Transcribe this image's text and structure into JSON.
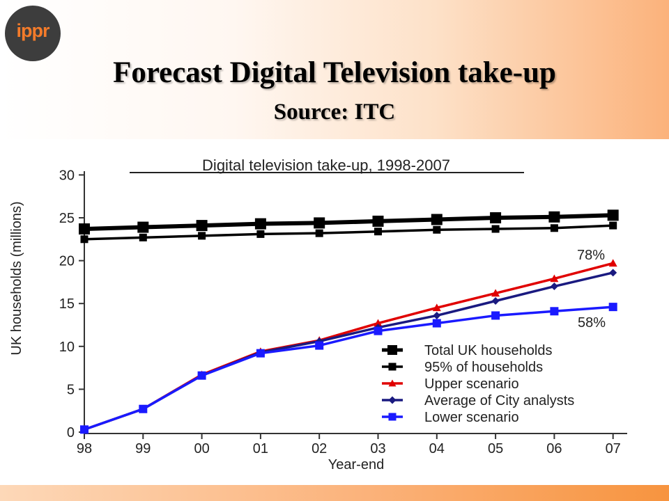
{
  "logo": {
    "text": "ippr"
  },
  "slide": {
    "title": "Forecast Digital Television take-up",
    "subtitle": "Source: ITC"
  },
  "chart_data": {
    "type": "line",
    "title": "Digital television take-up, 1998-2007",
    "xlabel": "Year-end",
    "ylabel": "UK households (millions)",
    "categories": [
      "98",
      "99",
      "00",
      "01",
      "02",
      "03",
      "04",
      "05",
      "06",
      "07"
    ],
    "ylim": [
      0,
      30
    ],
    "yticks": [
      0,
      5,
      10,
      15,
      20,
      25,
      30
    ],
    "grid": false,
    "legend_position": "bottom-right",
    "series": [
      {
        "name": "Total UK households",
        "color": "#000000",
        "marker": "square",
        "values": [
          23.7,
          23.9,
          24.1,
          24.3,
          24.4,
          24.6,
          24.8,
          25.0,
          25.1,
          25.3
        ]
      },
      {
        "name": "95% of households",
        "color": "#000000",
        "marker": "square",
        "values": [
          22.5,
          22.7,
          22.9,
          23.1,
          23.2,
          23.4,
          23.6,
          23.7,
          23.8,
          24.1
        ]
      },
      {
        "name": "Upper scenario",
        "color": "#e00000",
        "marker": "triangle",
        "values": [
          0.3,
          2.7,
          6.7,
          9.4,
          10.7,
          12.7,
          14.5,
          16.2,
          17.9,
          19.7
        ]
      },
      {
        "name": "Average of City analysts",
        "color": "#1a1a80",
        "marker": "diamond",
        "values": [
          0.3,
          2.7,
          6.6,
          9.3,
          10.6,
          12.2,
          13.6,
          15.3,
          17.0,
          18.6
        ]
      },
      {
        "name": "Lower scenario",
        "color": "#1a1aff",
        "marker": "square",
        "values": [
          0.3,
          2.7,
          6.6,
          9.2,
          10.1,
          11.8,
          12.7,
          13.6,
          14.1,
          14.6
        ]
      }
    ],
    "annotations": [
      {
        "text": "78%",
        "x": "07",
        "y": 21
      },
      {
        "text": "58%",
        "x": "07",
        "y": 13
      }
    ]
  }
}
